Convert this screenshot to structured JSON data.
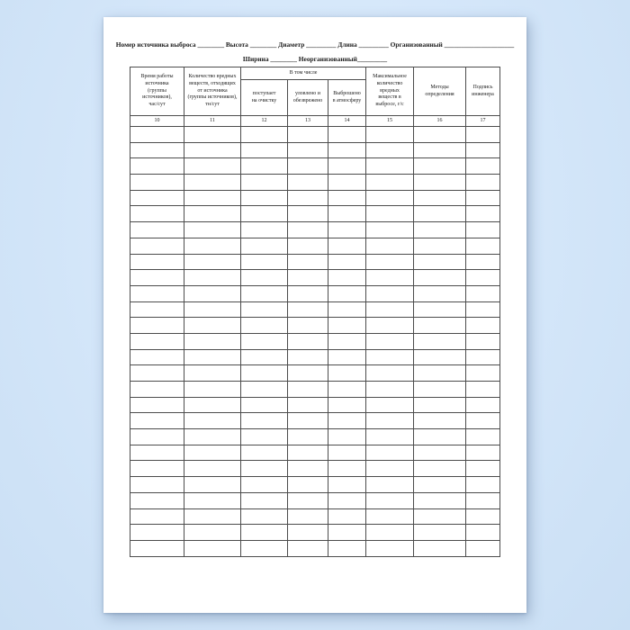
{
  "document": {
    "header_line1": "Номер источника выброса ________  Высота ________  Диаметр _________  Длина _________  Организованный _____________________",
    "header_line2": "Ширина ________  Неорганизованный_________"
  },
  "table": {
    "group_header": "В том числе",
    "columns": [
      {
        "number": "10",
        "title": "Время работы\nисточника\n(группы\nисточников),\nчас/сут"
      },
      {
        "number": "11",
        "title": "Количество вредных\nвеществ, отходящих\nот источника\n(группы источников),\nтн/сут"
      },
      {
        "number": "12",
        "title": "поступает\nна очистку"
      },
      {
        "number": "13",
        "title": "уловлено и\nобезврежено"
      },
      {
        "number": "14",
        "title": "Выброшено\nв атмосферу"
      },
      {
        "number": "15",
        "title": "Максимальное\nколичество\nвредных\nвеществ в\nвыбросе, г/с"
      },
      {
        "number": "16",
        "title": "Методы\nопределения"
      },
      {
        "number": "17",
        "title": "Подпись\nинженера"
      }
    ],
    "body_row_count": 27
  },
  "colors": {
    "background": "#d5e7fa",
    "paper": "#ffffff",
    "table_border": "#4c4c4c",
    "text": "#1b1b1b"
  }
}
